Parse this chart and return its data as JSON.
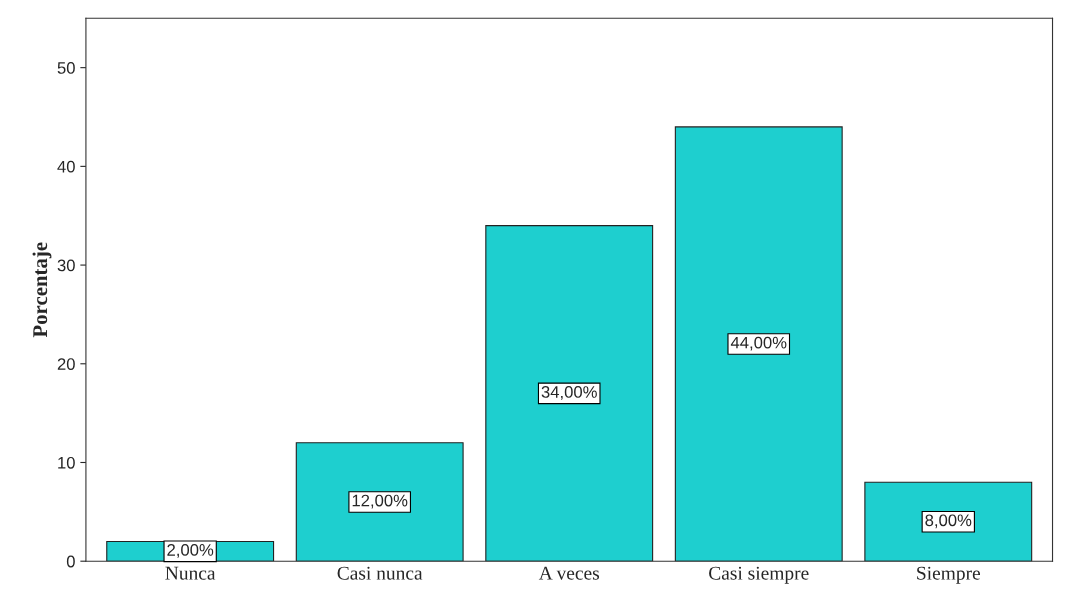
{
  "chart_data": {
    "type": "bar",
    "ylabel": "Porcentaje",
    "categories": [
      "Nunca",
      "Casi nunca",
      "A veces",
      "Casi siempre",
      "Siempre"
    ],
    "values": [
      2,
      12,
      34,
      44,
      8
    ],
    "value_labels": [
      "2,00%",
      "12,00%",
      "34,00%",
      "44,00%",
      "8,00%"
    ],
    "color": "#1ecfcf",
    "ylim": [
      0,
      55
    ],
    "yticks": [
      0,
      10,
      20,
      30,
      40,
      50
    ],
    "grid": false
  }
}
